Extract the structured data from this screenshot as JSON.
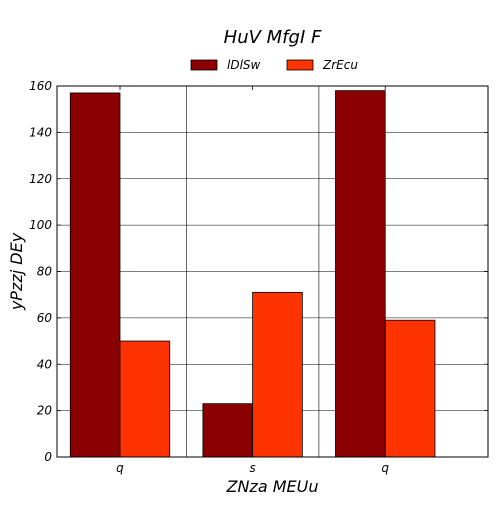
{
  "chart_data": {
    "type": "bar",
    "title": "HuV MfgI  F",
    "xlabel": "ZNza MEUu",
    "ylabel": "yPzzj DEy",
    "categories": [
      "q",
      "s",
      "q"
    ],
    "series": [
      {
        "name": "lDlSw",
        "color": "#8b0000",
        "values": [
          157,
          23,
          158
        ]
      },
      {
        "name": "ZrEcu",
        "color": "#ff3300",
        "values": [
          50,
          71,
          59
        ]
      }
    ],
    "ylim": [
      0,
      160
    ],
    "yticks": [
      0,
      20,
      40,
      60,
      80,
      100,
      120,
      140,
      160
    ],
    "grid": true,
    "legend_position": "top-center"
  }
}
